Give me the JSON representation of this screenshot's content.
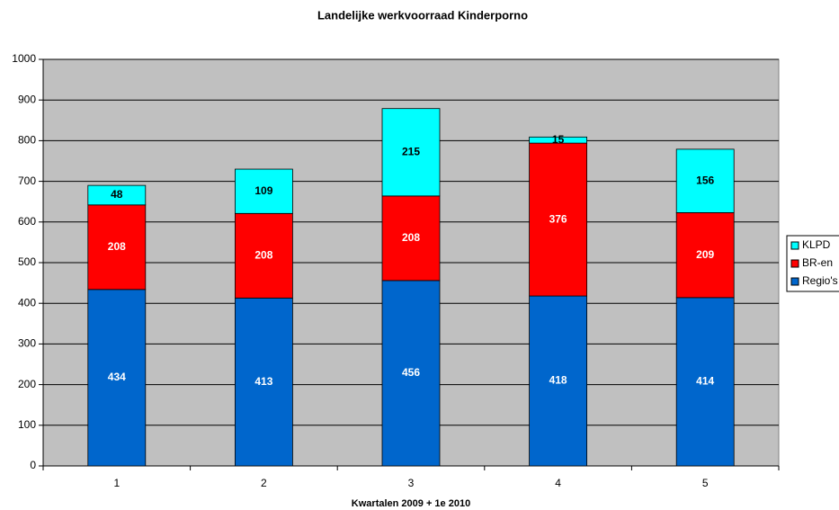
{
  "chart_data": {
    "type": "stacked_bar",
    "title": "Landelijke werkvoorraad Kinderporno",
    "x_label": "Kwartalen 2009 + 1e 2010",
    "categories": [
      "1",
      "2",
      "3",
      "4",
      "5"
    ],
    "series": [
      {
        "name": "Regio's",
        "color": "#0066cc",
        "label_color": "#ffffff",
        "values": [
          434,
          413,
          456,
          418,
          414
        ]
      },
      {
        "name": "BR-en",
        "color": "#ff0000",
        "label_color": "#ffffff",
        "values": [
          208,
          208,
          208,
          376,
          209
        ]
      },
      {
        "name": "KLPD",
        "color": "#00ffff",
        "label_color": "#000000",
        "values": [
          48,
          109,
          215,
          15,
          156
        ]
      }
    ],
    "ylim": [
      0,
      1000
    ],
    "yticks": [
      0,
      100,
      200,
      300,
      400,
      500,
      600,
      700,
      800,
      900,
      1000
    ],
    "grid": true,
    "legend": "right"
  }
}
